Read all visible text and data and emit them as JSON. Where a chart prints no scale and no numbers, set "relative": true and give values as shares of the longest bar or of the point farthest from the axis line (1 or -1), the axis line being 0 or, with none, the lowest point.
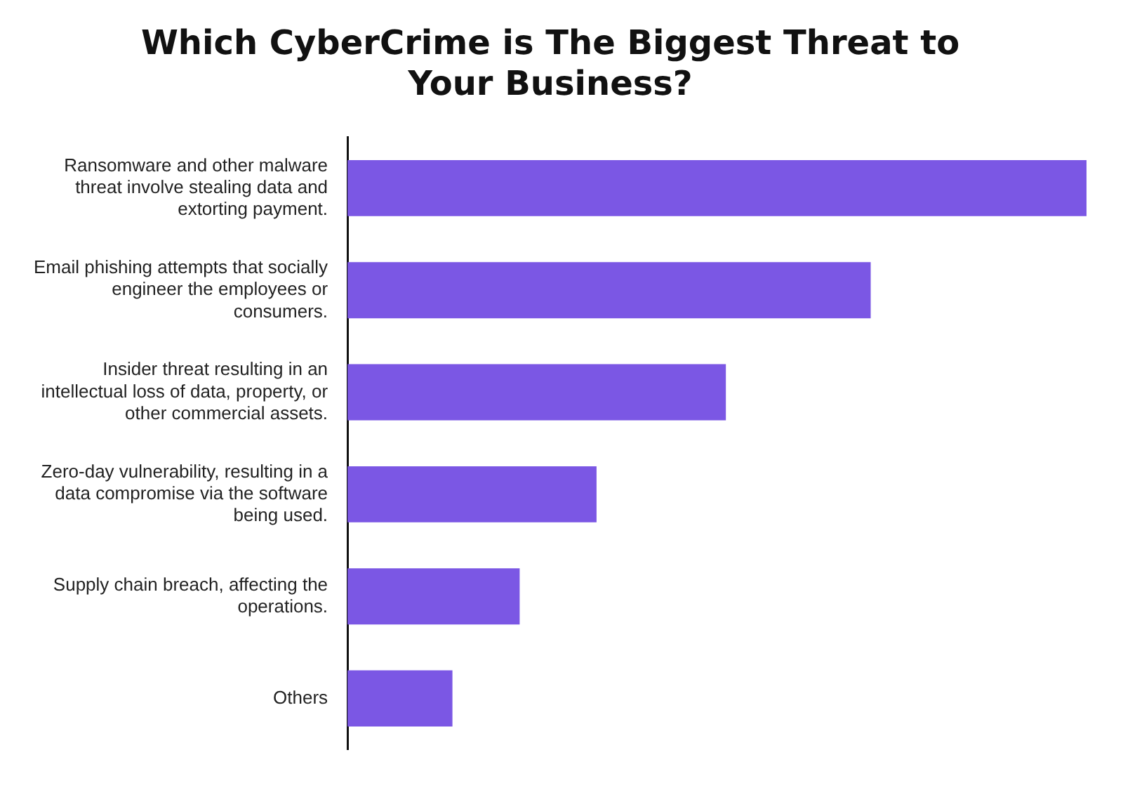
{
  "chart_data": {
    "type": "bar",
    "orientation": "horizontal",
    "relative": true,
    "title": "Which CyberCrime is The Biggest Threat to Your Business?",
    "categories": [
      "Ransomware and other malware threat involve stealing data and extorting payment.",
      "Email phishing attempts that socially engineer the employees or consumers.",
      "Insider threat resulting in an intellectual loss of data, property, or other commercial assets.",
      "Zero-day vulnerability, resulting in a data compromise via the software being used.",
      "Supply chain breach, affecting the operations.",
      "Others"
    ],
    "values": [
      1,
      0.708,
      0.512,
      0.337,
      0.233,
      0.142
    ],
    "color": "#7b57e4"
  }
}
